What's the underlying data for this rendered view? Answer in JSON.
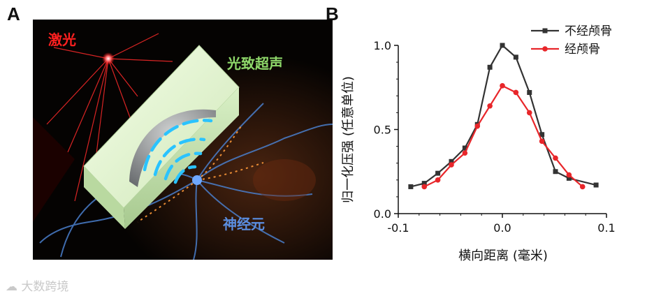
{
  "panel_a": {
    "letter": "A",
    "labels": {
      "laser": "激光",
      "photoacoustic": "光致超声",
      "neuron": "神经元"
    },
    "colors": {
      "laser": "#ff2020",
      "photoacoustic": "#8ed86a",
      "neuron": "#5b8ee0",
      "waves": "#2ac3ff"
    }
  },
  "panel_b": {
    "letter": "B"
  },
  "watermark": "大数跨境",
  "chart_data": {
    "type": "line",
    "title": "",
    "xlabel": "横向距离 (毫米)",
    "ylabel": "归一化压强 (任意单位)",
    "xlim": [
      -0.1,
      0.1
    ],
    "ylim": [
      0.0,
      1.0
    ],
    "xticks": [
      "-0.1",
      "0.0",
      "0.1"
    ],
    "yticks": [
      "0.0",
      "0.5",
      "1.0"
    ],
    "grid": false,
    "legend_position": "top-right",
    "series": [
      {
        "name": "不经颅骨",
        "color": "#333333",
        "marker": "square",
        "x": [
          -0.088,
          -0.075,
          -0.062,
          -0.049,
          -0.036,
          -0.024,
          -0.012,
          0.0,
          0.013,
          0.026,
          0.038,
          0.051,
          0.064,
          0.09
        ],
        "y": [
          0.16,
          0.18,
          0.24,
          0.31,
          0.39,
          0.53,
          0.87,
          1.0,
          0.93,
          0.72,
          0.47,
          0.25,
          0.21,
          0.17
        ]
      },
      {
        "name": "经颅骨",
        "color": "#e8262a",
        "marker": "circle",
        "x": [
          -0.075,
          -0.062,
          -0.049,
          -0.036,
          -0.024,
          -0.012,
          0.0,
          0.013,
          0.026,
          0.038,
          0.051,
          0.064,
          0.077
        ],
        "y": [
          0.16,
          0.2,
          0.29,
          0.36,
          0.52,
          0.64,
          0.76,
          0.72,
          0.6,
          0.43,
          0.33,
          0.23,
          0.16
        ]
      }
    ]
  }
}
